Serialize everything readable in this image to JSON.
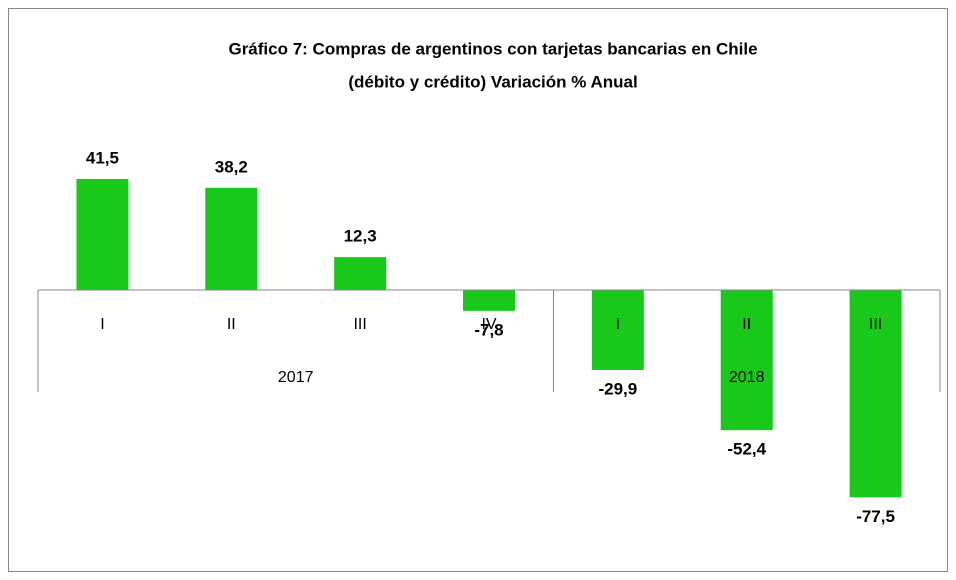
{
  "chart_data": {
    "type": "bar",
    "title": [
      "Gráfico 7: Compras de argentinos con tarjetas bancarias  en Chile",
      "(débito y crédito) Variación % Anual"
    ],
    "categories": [
      "I",
      "II",
      "III",
      "IV",
      "I",
      "II",
      "III"
    ],
    "groups": [
      {
        "name": "2017",
        "span": 4
      },
      {
        "name": "2018",
        "span": 3
      }
    ],
    "values": [
      41.5,
      38.2,
      12.3,
      -7.8,
      -29.9,
      -52.4,
      -77.5
    ],
    "value_labels": [
      "41,5",
      "38,2",
      "12,3",
      "-7,8",
      "-29,9",
      "-52,4",
      "-77,5"
    ],
    "color": "#19c919",
    "ylim": [
      -100,
      60
    ]
  }
}
